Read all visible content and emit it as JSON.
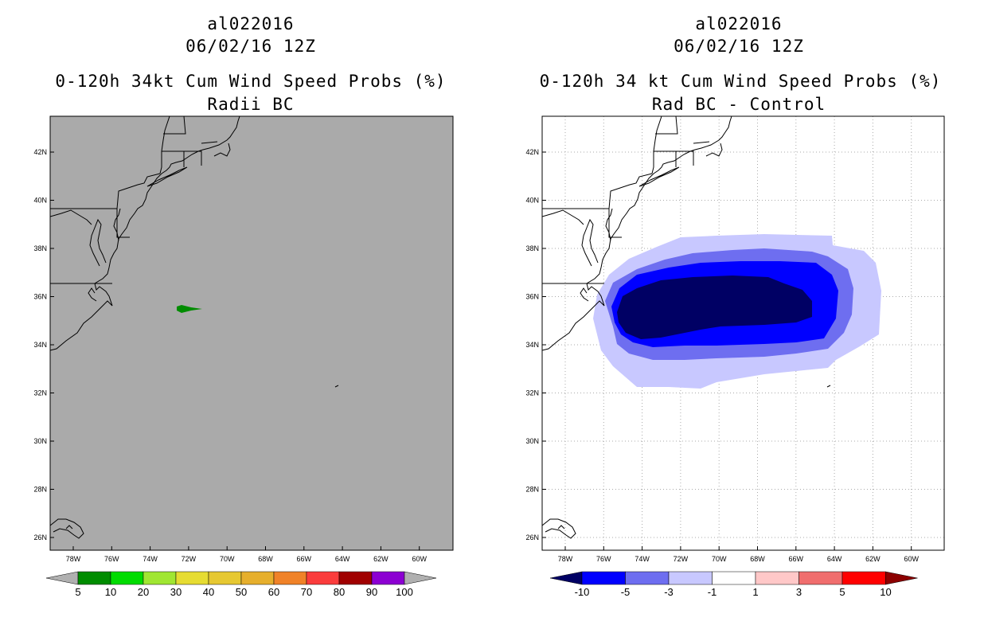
{
  "left_panel": {
    "storm_id": "al022016",
    "date": "06/02/16 12Z",
    "title": "0-120h 34kt Cum Wind Speed Probs (%)",
    "subtitle": "Radii BC",
    "colors": {
      "background": "#aaaaaa"
    },
    "colorbar": {
      "labels": [
        "5",
        "10",
        "20",
        "30",
        "40",
        "50",
        "60",
        "70",
        "80",
        "90",
        "100"
      ],
      "colors": [
        "#008c00",
        "#00dc00",
        "#a0e632",
        "#e6dc32",
        "#e6c832",
        "#e6af2d",
        "#f08228",
        "#fa3c3c",
        "#a00000",
        "#8c00d2",
        "#5a00b4"
      ],
      "end_color": "#b0b0b0"
    }
  },
  "right_panel": {
    "storm_id": "al022016",
    "date": "06/02/16 12Z",
    "title": "0-120h 34 kt Cum Wind Speed Probs (%)",
    "subtitle": "Rad BC - Control",
    "colorbar": {
      "labels": [
        "-10",
        "-5",
        "-3",
        "-1",
        "1",
        "3",
        "5",
        "10"
      ],
      "colors": [
        "#000064",
        "#0000ff",
        "#6e6ef0",
        "#c8c8ff",
        "#ffffff",
        "#ffc8c8",
        "#f06e6e",
        "#ff0000"
      ],
      "end_left": "#000064",
      "end_right": "#8c0000"
    },
    "contour_colors": [
      "#c8c8ff",
      "#6e6ef0",
      "#0000ff",
      "#000064"
    ]
  },
  "axes": {
    "lon_labels": [
      "78W",
      "76W",
      "74W",
      "72W",
      "70W",
      "68W",
      "66W",
      "64W",
      "62W",
      "60W"
    ],
    "lat_labels": [
      "42N",
      "40N",
      "38N",
      "36N",
      "34N",
      "32N",
      "30N",
      "28N",
      "26N"
    ]
  }
}
